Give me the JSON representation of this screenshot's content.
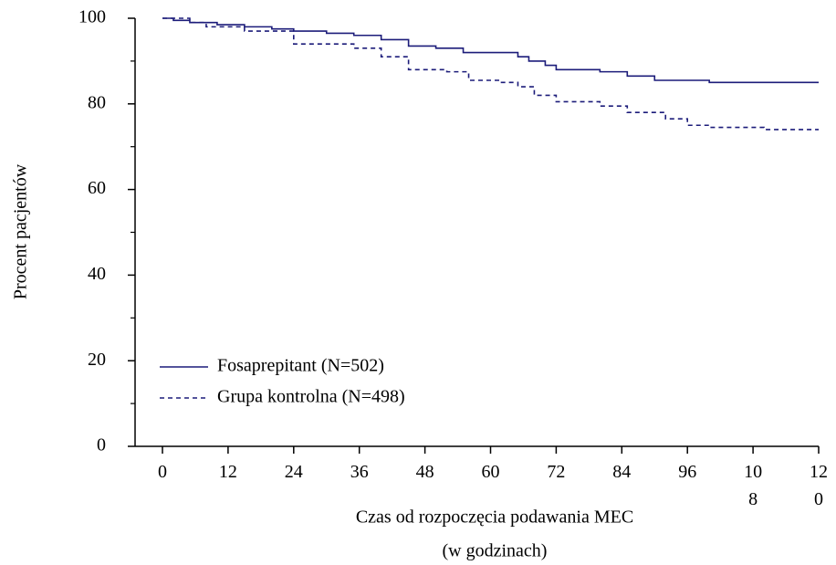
{
  "chart_data": {
    "type": "line",
    "ylabel": "Procent pacjentów",
    "xlabel_lines": [
      "Czas od rozpoczęcia podawania MEC",
      "(w godzinach)"
    ],
    "xlim": [
      -5,
      120
    ],
    "ylim": [
      0,
      100
    ],
    "xticks": [
      0,
      12,
      24,
      36,
      48,
      60,
      72,
      84,
      96,
      108,
      120
    ],
    "yticks": [
      0,
      20,
      40,
      60,
      80,
      100
    ],
    "yminorticks": [
      10,
      30,
      50,
      70,
      90
    ],
    "step": true,
    "series": [
      {
        "name": "Fosaprepitant (N=502)",
        "color": "#1c1c7a",
        "dash": false,
        "x": [
          0,
          2,
          2,
          5,
          5,
          10,
          10,
          15,
          15,
          20,
          20,
          24,
          24,
          30,
          30,
          35,
          35,
          40,
          40,
          45,
          45,
          50,
          50,
          55,
          55,
          65,
          65,
          67,
          67,
          70,
          70,
          72,
          72,
          80,
          80,
          85,
          85,
          90,
          90,
          100,
          100,
          120
        ],
        "values": [
          100,
          100,
          99.5,
          99.5,
          99,
          99,
          98.5,
          98.5,
          98,
          98,
          97.5,
          97.5,
          97,
          97,
          96.5,
          96.5,
          96,
          96,
          95,
          95,
          93.5,
          93.5,
          93,
          93,
          92,
          92,
          91,
          91,
          90,
          90,
          89,
          89,
          88,
          88,
          87.5,
          87.5,
          86.5,
          86.5,
          85.5,
          85.5,
          85,
          85
        ]
      },
      {
        "name": "Grupa kontrolna (N=498)",
        "color": "#1c1c7a",
        "dash": true,
        "x": [
          0,
          5,
          5,
          8,
          8,
          15,
          15,
          24,
          24,
          35,
          35,
          40,
          40,
          45,
          45,
          52,
          52,
          56,
          56,
          62,
          62,
          65,
          65,
          68,
          68,
          72,
          72,
          80,
          80,
          85,
          85,
          92,
          92,
          96,
          96,
          100,
          100,
          110,
          110,
          120
        ],
        "values": [
          100,
          100,
          99,
          99,
          98,
          98,
          97,
          97,
          94,
          94,
          93,
          93,
          91,
          91,
          88,
          88,
          87.5,
          87.5,
          85.5,
          85.5,
          85,
          85,
          84,
          84,
          82,
          82,
          80.5,
          80.5,
          79.5,
          79.5,
          78,
          78,
          76.5,
          76.5,
          75,
          75,
          74.5,
          74.5,
          74,
          74
        ]
      }
    ]
  }
}
